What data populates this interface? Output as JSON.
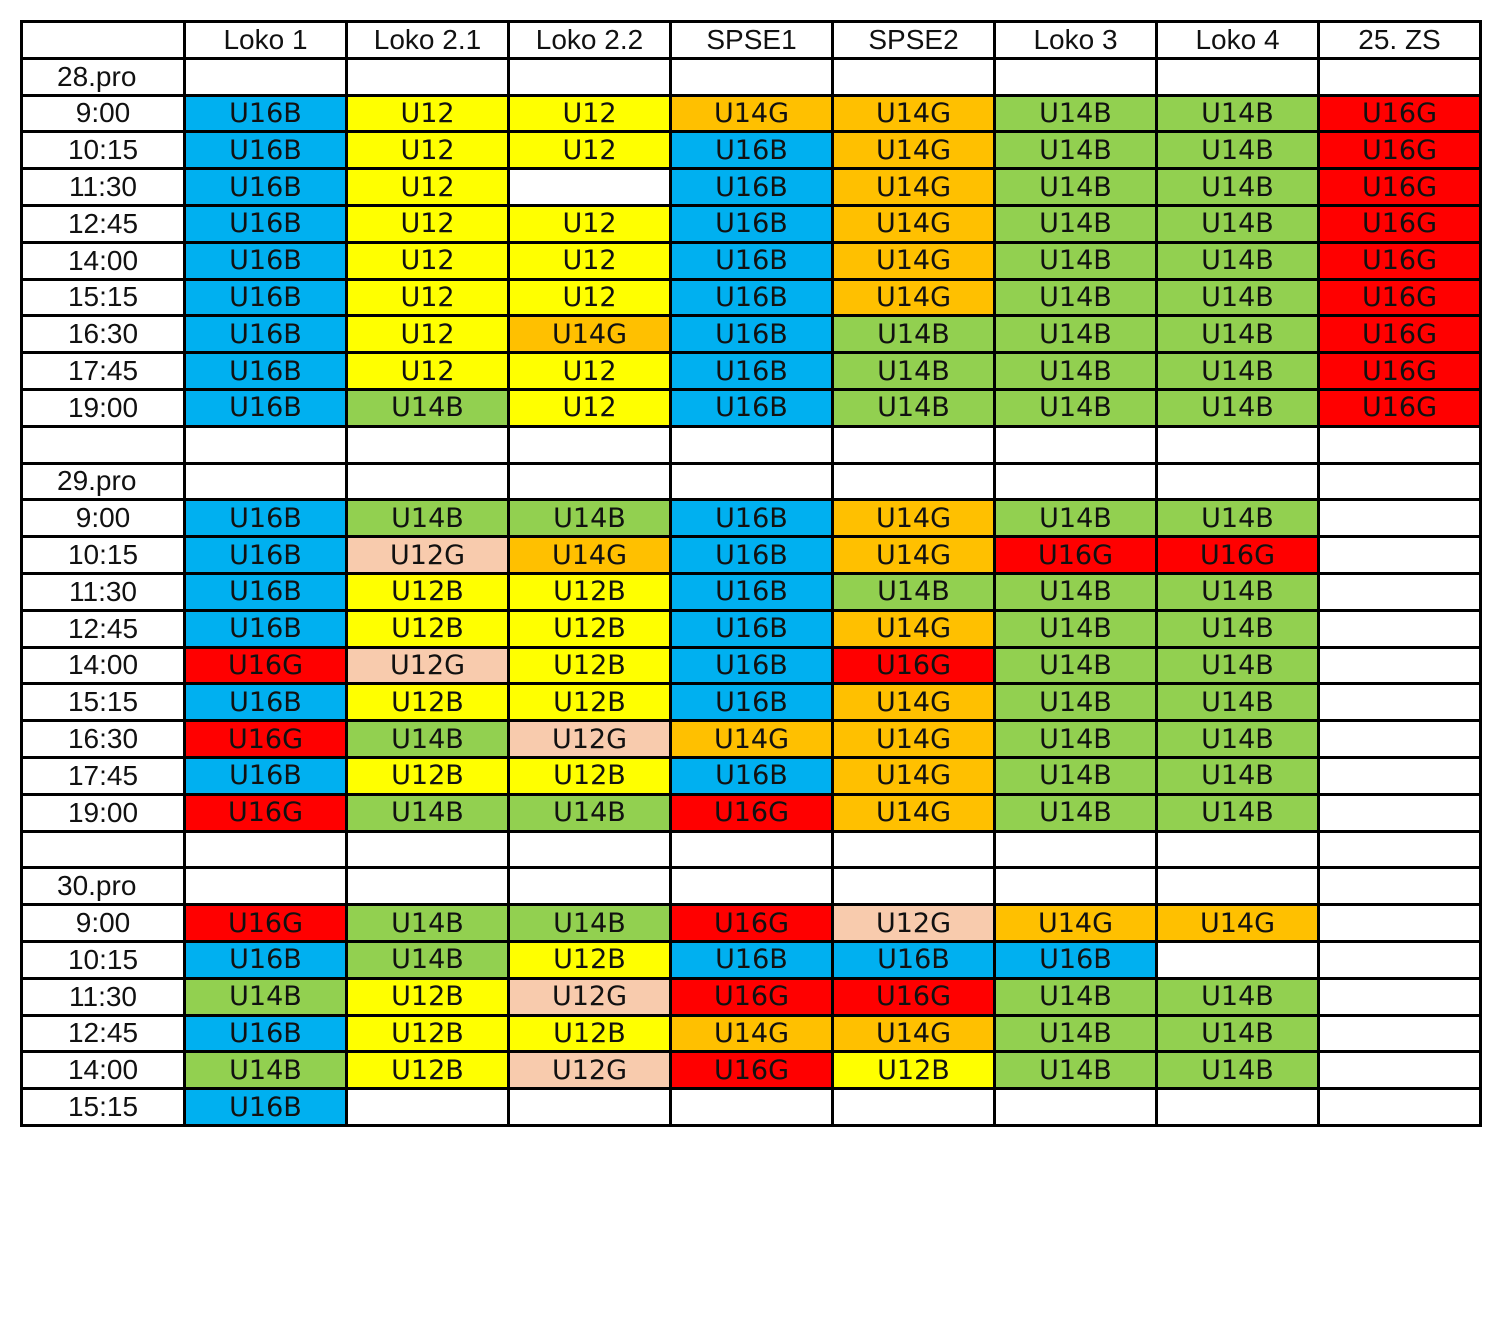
{
  "columns": [
    "",
    "Loko 1",
    "Loko 2.1",
    "Loko 2.2",
    "SPSE1",
    "SPSE2",
    "Loko 3",
    "Loko 4",
    "25. ZS"
  ],
  "colors": {
    "U16B": "#00B0F0",
    "U12": "#FFFF00",
    "U12B": "#FFFF00",
    "U12G": "#F8CBAD",
    "U14G": "#FFC000",
    "U14B": "#92D050",
    "U16G": "#FF0000",
    "empty": "#FFFFFF"
  },
  "rows": [
    {
      "label": "28.pro",
      "kind": "date",
      "cells": [
        "",
        "",
        "",
        "",
        "",
        "",
        "",
        ""
      ]
    },
    {
      "label": "9:00",
      "kind": "time",
      "cells": [
        "U16B",
        "U12",
        "U12",
        "U14G",
        "U14G",
        "U14B",
        "U14B",
        "U16G"
      ]
    },
    {
      "label": "10:15",
      "kind": "time",
      "cells": [
        "U16B",
        "U12",
        "U12",
        "U16B",
        "U14G",
        "U14B",
        "U14B",
        "U16G"
      ]
    },
    {
      "label": "11:30",
      "kind": "time",
      "cells": [
        "U16B",
        "U12",
        "",
        "U16B",
        "U14G",
        "U14B",
        "U14B",
        "U16G"
      ]
    },
    {
      "label": "12:45",
      "kind": "time",
      "cells": [
        "U16B",
        "U12",
        "U12",
        "U16B",
        "U14G",
        "U14B",
        "U14B",
        "U16G"
      ]
    },
    {
      "label": "14:00",
      "kind": "time",
      "cells": [
        "U16B",
        "U12",
        "U12",
        "U16B",
        "U14G",
        "U14B",
        "U14B",
        "U16G"
      ]
    },
    {
      "label": "15:15",
      "kind": "time",
      "cells": [
        "U16B",
        "U12",
        "U12",
        "U16B",
        "U14G",
        "U14B",
        "U14B",
        "U16G"
      ]
    },
    {
      "label": "16:30",
      "kind": "time",
      "cells": [
        "U16B",
        "U12",
        "U14G",
        "U16B",
        "U14B",
        "U14B",
        "U14B",
        "U16G"
      ]
    },
    {
      "label": "17:45",
      "kind": "time",
      "cells": [
        "U16B",
        "U12",
        "U12",
        "U16B",
        "U14B",
        "U14B",
        "U14B",
        "U16G"
      ]
    },
    {
      "label": "19:00",
      "kind": "time",
      "cells": [
        "U16B",
        "U14B",
        "U12",
        "U16B",
        "U14B",
        "U14B",
        "U14B",
        "U16G"
      ]
    },
    {
      "label": "",
      "kind": "blank",
      "cells": [
        "",
        "",
        "",
        "",
        "",
        "",
        "",
        ""
      ]
    },
    {
      "label": "29.pro",
      "kind": "date",
      "cells": [
        "",
        "",
        "",
        "",
        "",
        "",
        "",
        ""
      ]
    },
    {
      "label": "9:00",
      "kind": "time",
      "cells": [
        "U16B",
        "U14B",
        "U14B",
        "U16B",
        "U14G",
        "U14B",
        "U14B",
        ""
      ]
    },
    {
      "label": "10:15",
      "kind": "time",
      "cells": [
        "U16B",
        "U12G",
        "U14G",
        "U16B",
        "U14G",
        "U16G",
        "U16G",
        ""
      ]
    },
    {
      "label": "11:30",
      "kind": "time",
      "cells": [
        "U16B",
        "U12B",
        "U12B",
        "U16B",
        "U14B",
        "U14B",
        "U14B",
        ""
      ]
    },
    {
      "label": "12:45",
      "kind": "time",
      "cells": [
        "U16B",
        "U12B",
        "U12B",
        "U16B",
        "U14G",
        "U14B",
        "U14B",
        ""
      ]
    },
    {
      "label": "14:00",
      "kind": "time",
      "cells": [
        "U16G",
        "U12G",
        "U12B",
        "U16B",
        "U16G",
        "U14B",
        "U14B",
        ""
      ]
    },
    {
      "label": "15:15",
      "kind": "time",
      "cells": [
        "U16B",
        "U12B",
        "U12B",
        "U16B",
        "U14G",
        "U14B",
        "U14B",
        ""
      ]
    },
    {
      "label": "16:30",
      "kind": "time",
      "cells": [
        "U16G",
        "U14B",
        "U12G",
        "U14G",
        "U14G",
        "U14B",
        "U14B",
        ""
      ]
    },
    {
      "label": "17:45",
      "kind": "time",
      "cells": [
        "U16B",
        "U12B",
        "U12B",
        "U16B",
        "U14G",
        "U14B",
        "U14B",
        ""
      ]
    },
    {
      "label": "19:00",
      "kind": "time",
      "cells": [
        "U16G",
        "U14B",
        "U14B",
        "U16G",
        "U14G",
        "U14B",
        "U14B",
        ""
      ]
    },
    {
      "label": "",
      "kind": "blank",
      "cells": [
        "",
        "",
        "",
        "",
        "",
        "",
        "",
        ""
      ]
    },
    {
      "label": "30.pro",
      "kind": "date",
      "cells": [
        "",
        "",
        "",
        "",
        "",
        "",
        "",
        ""
      ]
    },
    {
      "label": "9:00",
      "kind": "time",
      "cells": [
        "U16G",
        "U14B",
        "U14B",
        "U16G",
        "U12G",
        "U14G",
        "U14G",
        ""
      ]
    },
    {
      "label": "10:15",
      "kind": "time",
      "cells": [
        "U16B",
        "U14B",
        "U12B",
        "U16B",
        "U16B",
        "U16B",
        "",
        ""
      ]
    },
    {
      "label": "11:30",
      "kind": "time",
      "cells": [
        "U14B",
        "U12B",
        "U12G",
        "U16G",
        "U16G",
        "U14B",
        "U14B",
        ""
      ]
    },
    {
      "label": "12:45",
      "kind": "time",
      "cells": [
        "U16B",
        "U12B",
        "U12B",
        "U14G",
        "U14G",
        "U14B",
        "U14B",
        ""
      ]
    },
    {
      "label": "14:00",
      "kind": "time",
      "cells": [
        "U14B",
        "U12B",
        "U12G",
        "U16G",
        "U12B",
        "U14B",
        "U14B",
        ""
      ]
    },
    {
      "label": "15:15",
      "kind": "time",
      "cells": [
        "U16B",
        "",
        "",
        "",
        "",
        "",
        "",
        ""
      ]
    }
  ]
}
